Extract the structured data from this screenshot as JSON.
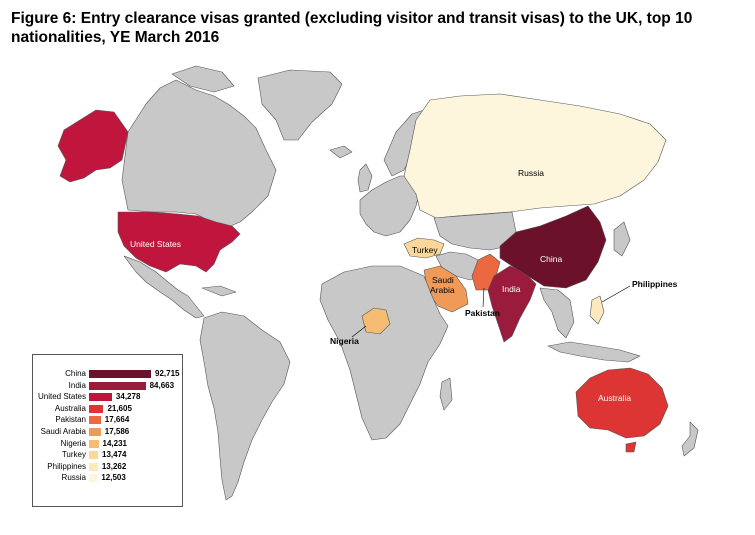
{
  "title": "Figure 6: Entry clearance visas granted (excluding visitor and transit visas) to the UK, top 10 nationalities, YE March 2016",
  "colors": {
    "land": "#c8c8c8",
    "border": "#555555",
    "china": "#6b1129",
    "india": "#9b1b3c",
    "united_states": "#c0163d",
    "australia": "#dd3434",
    "pakistan": "#ec6841",
    "saudi_arabia": "#f09a58",
    "nigeria": "#f6bc74",
    "turkey": "#fad89a",
    "philippines": "#fce9bd",
    "russia": "#fdf6dc"
  },
  "map_labels": {
    "russia": "Russia",
    "united_states": "United States",
    "china": "China",
    "india": "India",
    "turkey": "Turkey",
    "saudi_arabia_line1": "Saudi",
    "saudi_arabia_line2": "Arabia",
    "pakistan": "Pakistan",
    "nigeria": "Nigeria",
    "philippines": "Philippines",
    "australia": "Australia"
  },
  "chart_data": {
    "type": "bar",
    "categories": [
      "China",
      "India",
      "United States",
      "Australia",
      "Pakistan",
      "Saudi Arabia",
      "Nigeria",
      "Turkey",
      "Philippines",
      "Russia"
    ],
    "values": [
      92715,
      84663,
      34278,
      21605,
      17664,
      17586,
      14231,
      13474,
      13262,
      12503
    ],
    "value_labels": [
      "92,715",
      "84,663",
      "34,278",
      "21,605",
      "17,664",
      "17,586",
      "14,231",
      "13,474",
      "13,262",
      "12,503"
    ],
    "bar_colors": [
      "#6b1129",
      "#9b1b3c",
      "#c0163d",
      "#dd3434",
      "#ec6841",
      "#f09a58",
      "#f6bc74",
      "#fad89a",
      "#fce9bd",
      "#fdf6dc"
    ],
    "legend_placement": "bottom-left"
  }
}
